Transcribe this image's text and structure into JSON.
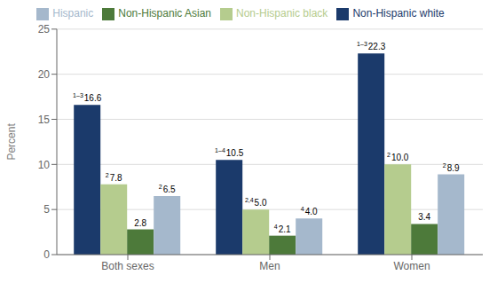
{
  "chart_data": {
    "type": "bar",
    "categories": [
      "Both sexes",
      "Men",
      "Women"
    ],
    "series": [
      {
        "name": "Non-Hispanic white",
        "color": "#1B3A6B",
        "values": [
          16.6,
          10.5,
          22.3
        ],
        "value_labels": [
          "16.6",
          "10.5",
          "22.3"
        ],
        "superscripts": [
          "1–3",
          "1–4",
          "1–3"
        ]
      },
      {
        "name": "Non-Hispanic black",
        "color": "#B5CC8E",
        "values": [
          7.8,
          5.0,
          10.0
        ],
        "value_labels": [
          "7.8",
          "5.0",
          "10.0"
        ],
        "superscripts": [
          "2",
          "2,4",
          "2"
        ]
      },
      {
        "name": "Non-Hispanic Asian",
        "color": "#4D7A3A",
        "values": [
          2.8,
          2.1,
          3.4
        ],
        "value_labels": [
          "2.8",
          "2.1",
          "3.4"
        ],
        "superscripts": [
          null,
          "4",
          null
        ]
      },
      {
        "name": "Hispanic",
        "color": "#A5B8CC",
        "values": [
          6.5,
          4.0,
          8.9
        ],
        "value_labels": [
          "6.5",
          "4.0",
          "8.9"
        ],
        "superscripts": [
          "2",
          "4",
          "2"
        ]
      }
    ],
    "y_label": "Percent",
    "ylim": [
      0,
      25
    ],
    "yticks": [
      0,
      5,
      10,
      15,
      20,
      25
    ],
    "grid": true,
    "data_labels": true,
    "legend": "top"
  }
}
